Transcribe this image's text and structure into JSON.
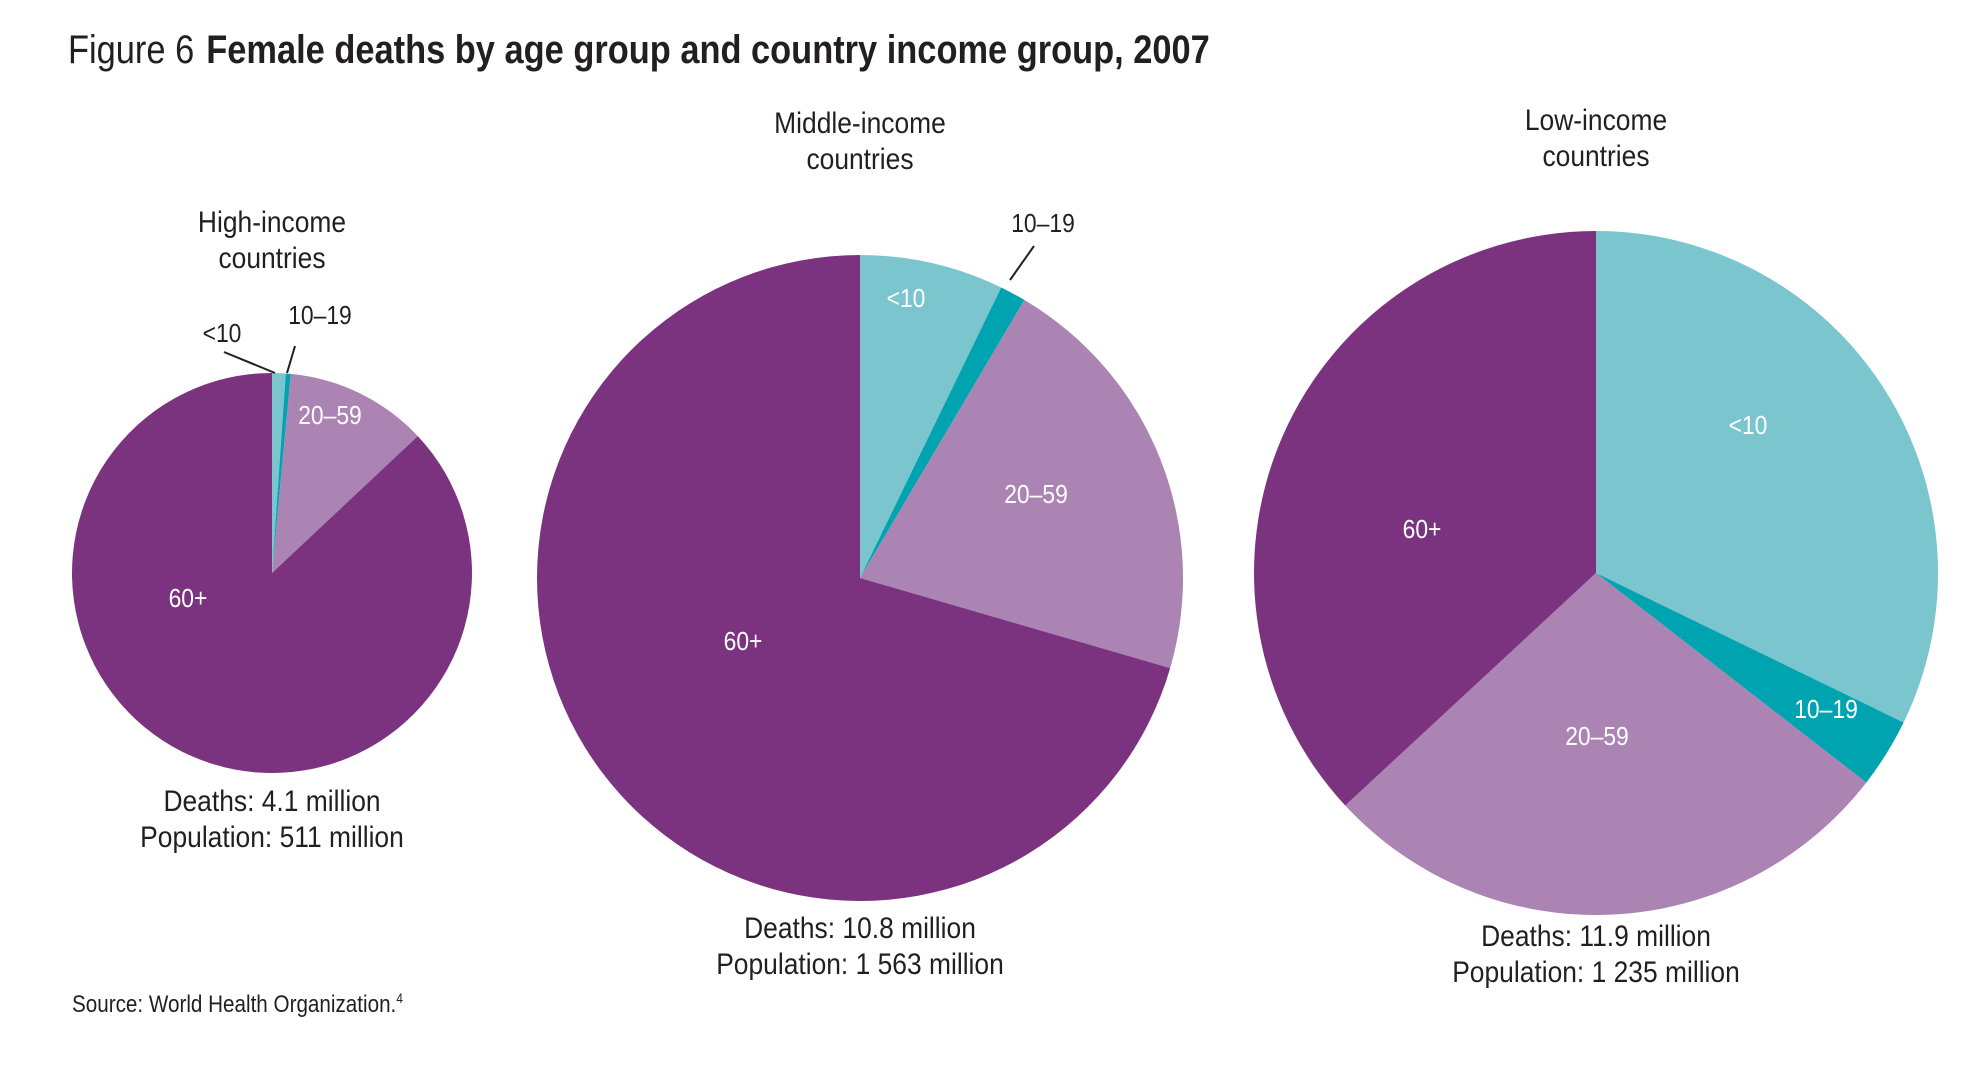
{
  "title": {
    "figure_label": "Figure 6",
    "text": "Female deaths by age group and country income group, 2007"
  },
  "source": {
    "text": "Source: World Health Organization.",
    "footnote": "4"
  },
  "colors": {
    "under_10": "#7bc5cf",
    "age_10_19": "#00a3b0",
    "age_20_59": "#ab84b3",
    "age_60_plus": "#7b3380"
  },
  "chart_data": [
    {
      "type": "pie",
      "title": "High-income countries",
      "title_lines": [
        "High-income",
        "countries"
      ],
      "categories": [
        "<10",
        "10–19",
        "20–59",
        "60+"
      ],
      "values": [
        1.1,
        0.4,
        11.5,
        87.0
      ],
      "unit": "percent of deaths",
      "caption_lines": [
        "Deaths: 4.1 million",
        "Population: 511 million"
      ]
    },
    {
      "type": "pie",
      "title": "Middle-income countries",
      "title_lines": [
        "Middle-income",
        "countries"
      ],
      "categories": [
        "<10",
        "10–19",
        "20–59",
        "60+"
      ],
      "values": [
        7.2,
        1.3,
        21.0,
        70.5
      ],
      "unit": "percent of deaths",
      "caption_lines": [
        "Deaths: 10.8 million",
        "Population: 1 563 million"
      ]
    },
    {
      "type": "pie",
      "title": "Low-income countries",
      "title_lines": [
        "Low-income",
        "countries"
      ],
      "categories": [
        "<10",
        "10–19",
        "20–59",
        "60+"
      ],
      "values": [
        32.2,
        3.3,
        27.6,
        36.9
      ],
      "unit": "percent of deaths",
      "caption_lines": [
        "Deaths: 11.9 million",
        "Population: 1 235 million"
      ]
    }
  ]
}
